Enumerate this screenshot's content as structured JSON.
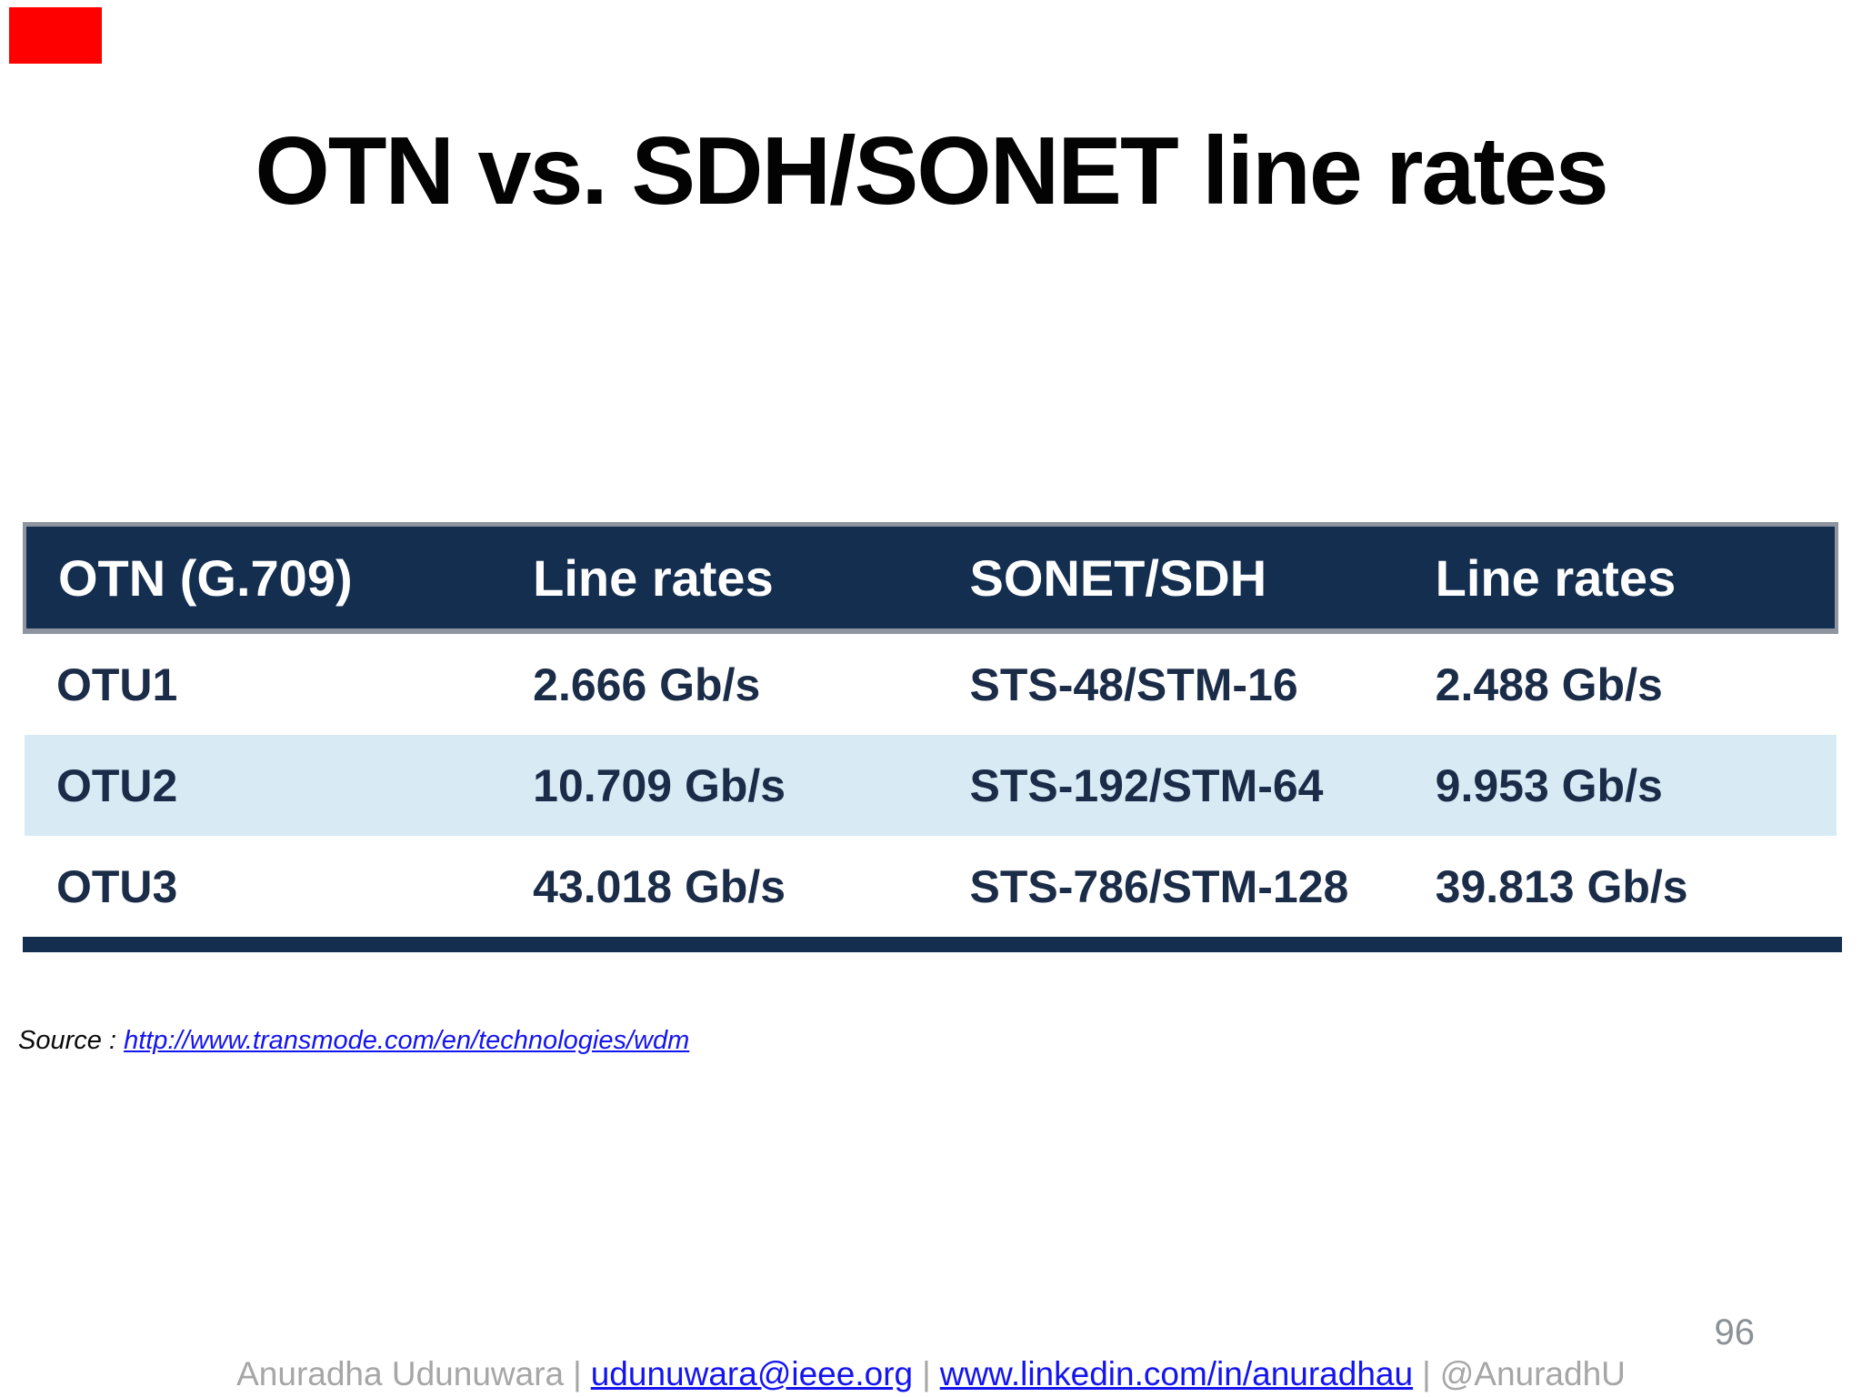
{
  "slide": {
    "title": "OTN vs. SDH/SONET line rates",
    "page_number": "96",
    "marker_color": "#ff0000"
  },
  "table": {
    "headers": [
      "OTN (G.709)",
      "Line rates",
      "SONET/SDH",
      "Line rates"
    ],
    "rows": [
      [
        "OTU1",
        "2.666 Gb/s",
        "STS-48/STM-16",
        "2.488 Gb/s"
      ],
      [
        "OTU2",
        "10.709 Gb/s",
        "STS-192/STM-64",
        "9.953 Gb/s"
      ],
      [
        "OTU3",
        "43.018 Gb/s",
        "STS-786/STM-128",
        "39.813 Gb/s"
      ]
    ],
    "colors": {
      "header_bg": "#132e4f",
      "header_text": "#ffffff",
      "row_alt_bg": "#d8eaf4",
      "row_text": "#1a2c48",
      "border_gray": "#8e95a0"
    }
  },
  "source": {
    "label": "Source :",
    "url": "http://www.transmode.com/en/technologies/wdm"
  },
  "footer": {
    "name": "Anuradha Udunuwara",
    "email": "udunuwara@ieee.org",
    "linkedin": "www.linkedin.com/in/anuradhau",
    "handle": "@AnuradhU",
    "separator": "|"
  }
}
